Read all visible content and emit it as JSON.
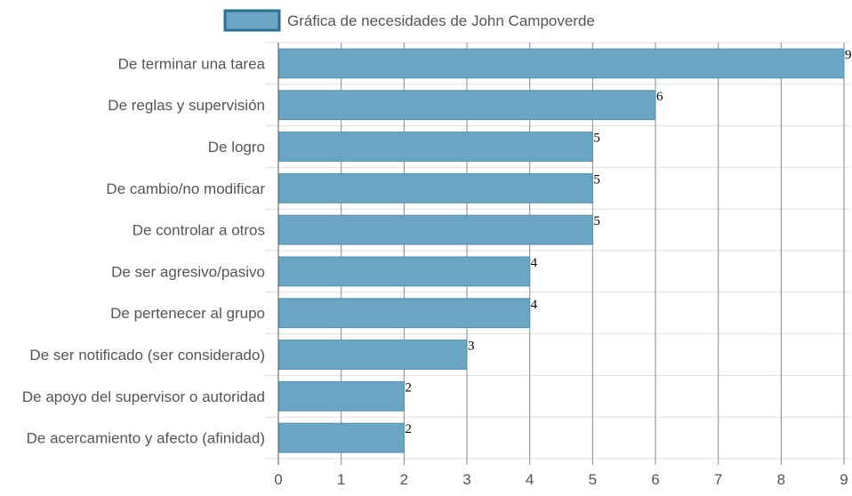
{
  "chart_data": {
    "type": "bar",
    "orientation": "horizontal",
    "categories": [
      "De terminar una tarea",
      "De reglas y supervisión",
      "De logro",
      "De cambio/no modificar",
      "De controlar a otros",
      "De ser agresivo/pasivo",
      "De pertenecer al grupo",
      "De ser notificado (ser considerado)",
      "De apoyo del supervisor o autoridad",
      "De acercamiento y afecto (afinidad)"
    ],
    "series": [
      {
        "name": "Gráfica de necesidades de John Campoverde",
        "values": [
          9,
          6,
          5,
          5,
          5,
          4,
          4,
          3,
          2,
          2
        ]
      }
    ],
    "xlim": [
      0,
      9
    ],
    "xticks": [
      "0",
      "1",
      "2",
      "3",
      "4",
      "5",
      "6",
      "7",
      "8",
      "9"
    ],
    "grid": true,
    "legend_position": "top",
    "colors": {
      "bar_fill": "#6aa5c4",
      "bar_stroke": "#4f8fb0",
      "legend_fill": "#6aa5c4",
      "legend_stroke": "#2e6f95",
      "vgrid": "#888888",
      "hgrid": "#dddddd"
    }
  }
}
